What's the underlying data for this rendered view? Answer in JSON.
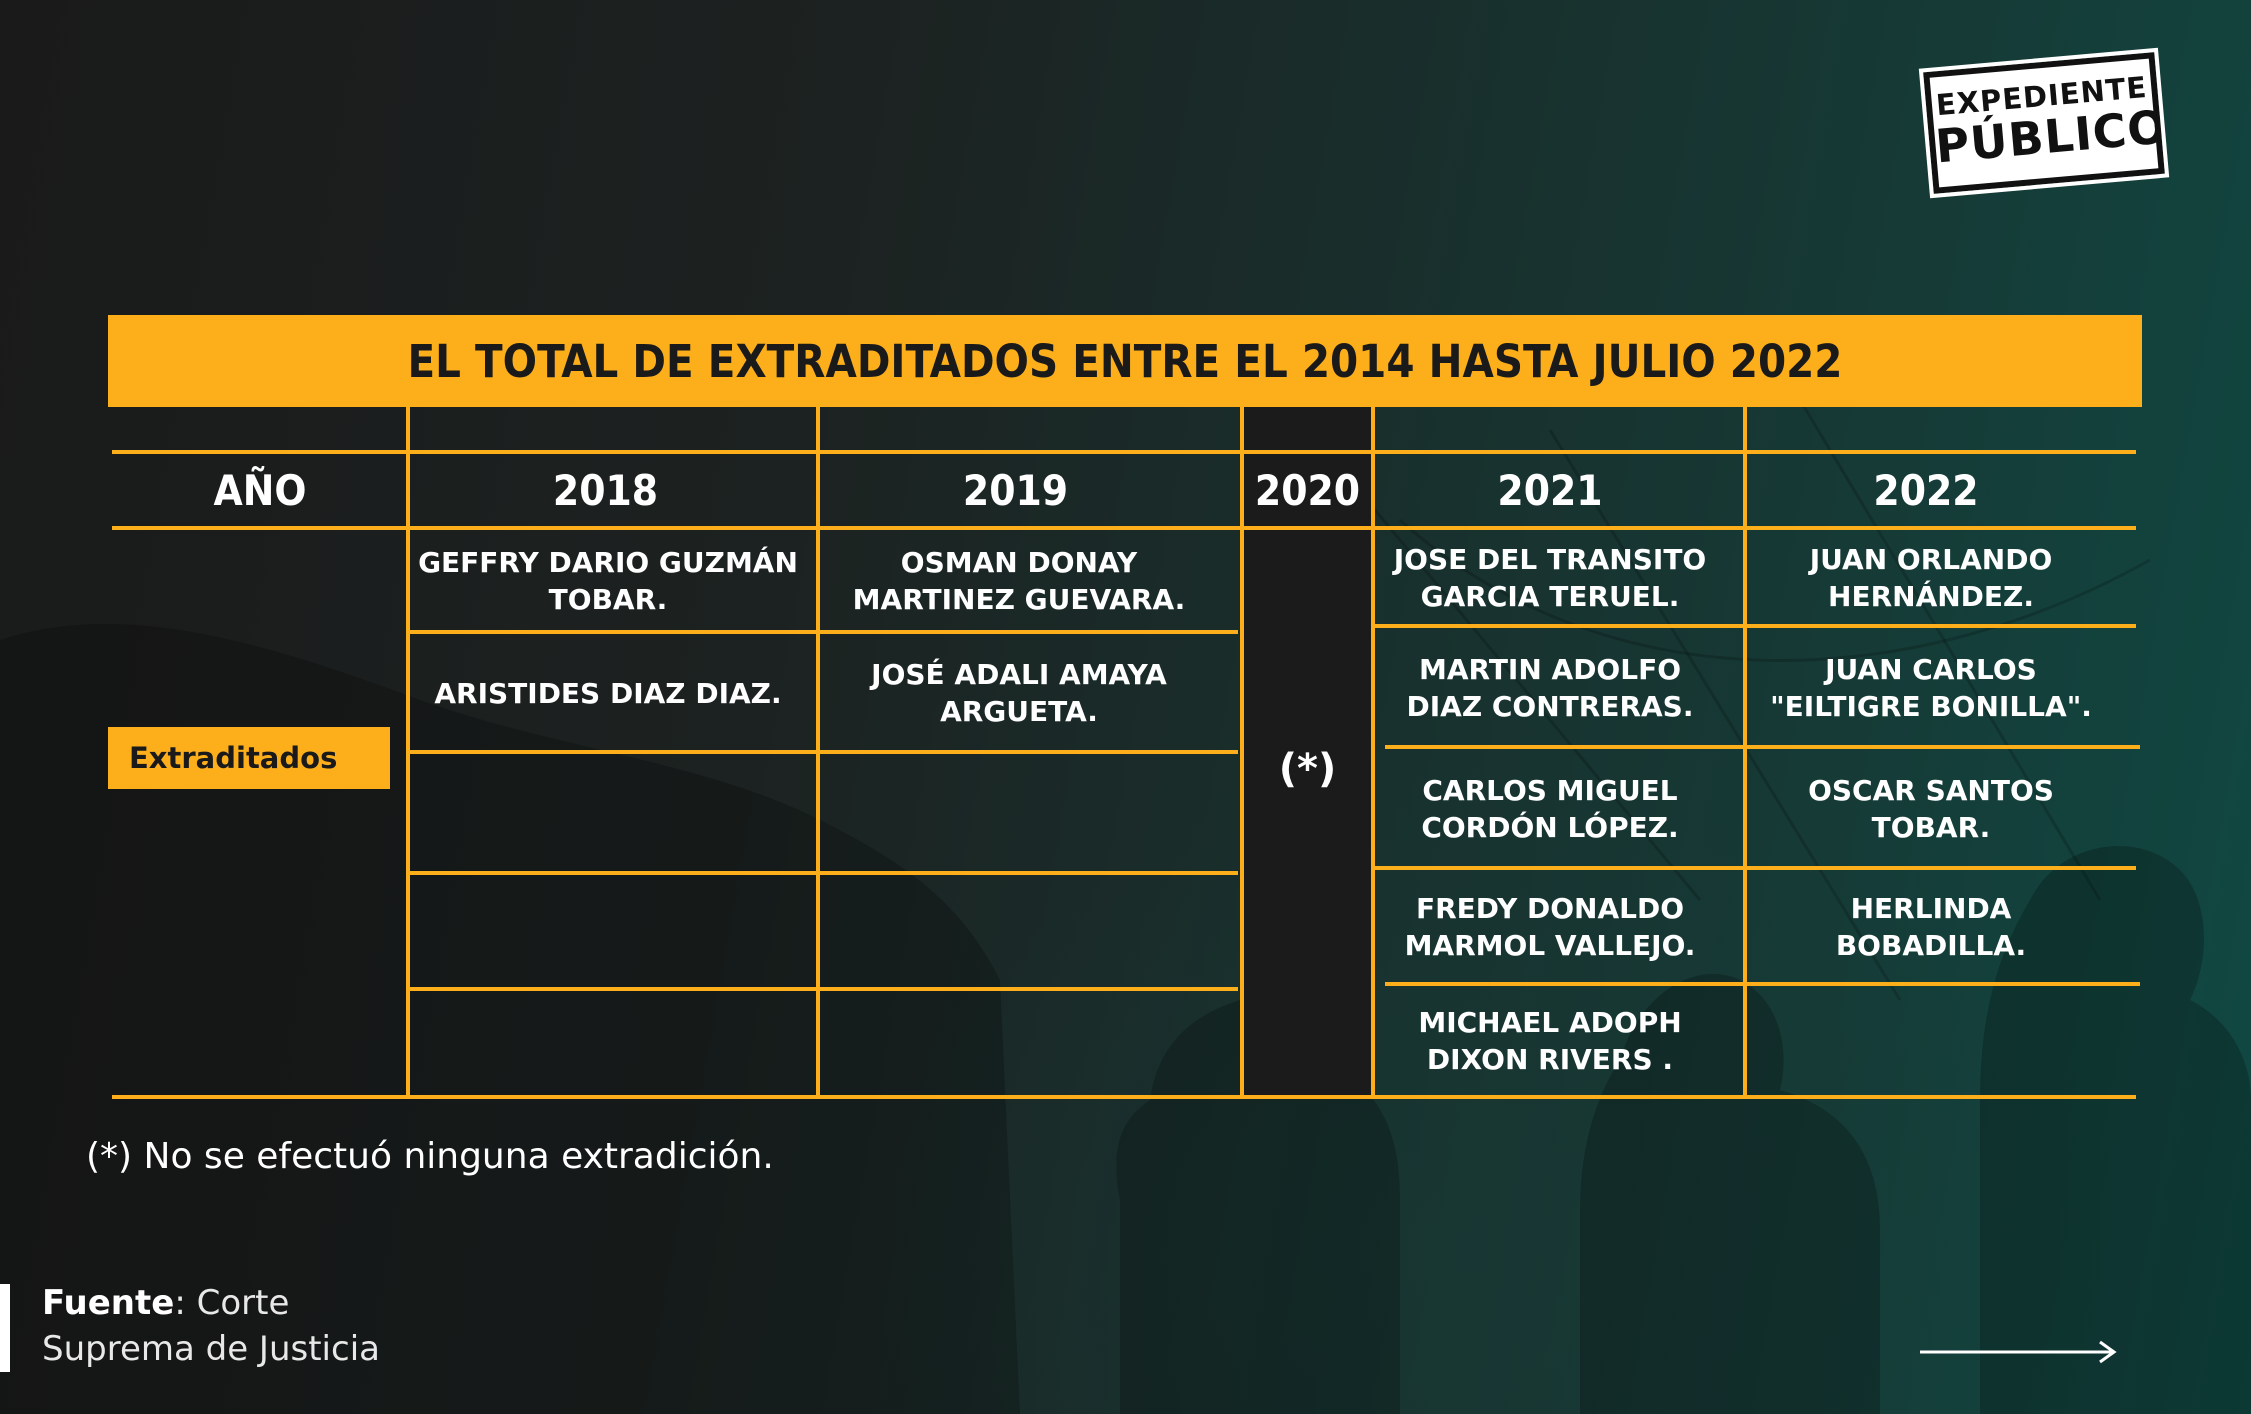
{
  "logo": {
    "line1": "EXPEDIENTE",
    "line2": "PÚBLICO"
  },
  "title": "EL TOTAL DE EXTRADITADOS ENTRE EL 2014 HASTA JULIO 2022",
  "table": {
    "year_header": "AÑO",
    "years": [
      "2018",
      "2019",
      "2020",
      "2021",
      "2022"
    ],
    "row_label": "Extraditados",
    "col_2018": [
      "GEFFRY DARIO GUZMÁN\nTOBAR.",
      "ARISTIDES DIAZ DIAZ."
    ],
    "col_2019": [
      "OSMAN DONAY\nMARTINEZ GUEVARA.",
      "JOSÉ ADALI AMAYA\nARGUETA."
    ],
    "col_2020": "(*)",
    "col_2021": [
      "JOSE DEL TRANSITO\nGARCIA TERUEL.",
      "MARTIN ADOLFO\nDIAZ CONTRERAS.",
      "CARLOS MIGUEL\nCORDÓN LÓPEZ.",
      "FREDY DONALDO\nMARMOL VALLEJO.",
      "MICHAEL ADOPH\nDIXON RIVERS ."
    ],
    "col_2022": [
      "JUAN ORLANDO\nHERNÁNDEZ.",
      "JUAN CARLOS\n\"EILTIGRE BONILLA\".",
      "OSCAR SANTOS\nTOBAR.",
      "HERLINDA\nBOBADILLA."
    ]
  },
  "note": "(*) No se efectuó ninguna extradición.",
  "source": {
    "label": "Fuente",
    "text_line1": ": Corte",
    "text_line2": "Suprema de Justicia"
  },
  "colors": {
    "accent": "#fcaf1b",
    "background_dark": "#1a1a1a",
    "background_teal": "#104943",
    "text": "#ffffff"
  },
  "icons": {
    "arrow": "arrow-right-icon"
  }
}
